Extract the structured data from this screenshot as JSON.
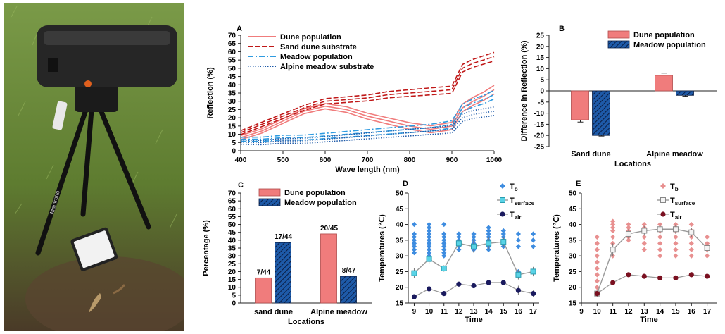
{
  "colors": {
    "dune": "#f07c7c",
    "dune_dark": "#c01818",
    "meadow": "#1e5aa8",
    "meadow_light": "#2f9be0",
    "diamond_blue": "#3d8ce0",
    "cyan": "#59d3e6",
    "navy": "#1a1a5e",
    "pink": "#e89090",
    "maroon": "#7a1020",
    "grass": "#6a8a38",
    "soil": "#5a4530"
  },
  "photo": {
    "device_label": "Manfrotto",
    "caption": "Spectrometer on tripod with white reference plate and lizard"
  },
  "chart_data": [
    {
      "id": "A",
      "type": "line",
      "title": "",
      "xlabel": "Wave length (nm)",
      "ylabel": "Reflection (%)",
      "xlim": [
        400,
        1000
      ],
      "ylim": [
        0,
        70
      ],
      "xticks": [
        400,
        500,
        600,
        700,
        800,
        900,
        1000
      ],
      "yticks": [
        0,
        5,
        10,
        15,
        20,
        25,
        30,
        35,
        40,
        45,
        50,
        55,
        60,
        65,
        70
      ],
      "series": [
        {
          "name": "Dune population",
          "style": "solid",
          "color": "#f07c7c",
          "x": [
            400,
            450,
            500,
            550,
            600,
            650,
            700,
            750,
            800,
            850,
            900,
            925,
            950,
            975,
            1000
          ],
          "values": [
            8,
            12,
            18,
            24,
            27,
            25,
            21,
            18,
            15,
            13,
            15,
            26,
            30,
            33,
            37
          ]
        },
        {
          "name": "Sand dune substrate",
          "style": "dashed",
          "color": "#c01818",
          "x": [
            400,
            450,
            500,
            550,
            600,
            650,
            700,
            750,
            800,
            850,
            900,
            925,
            950,
            975,
            1000
          ],
          "values": [
            11,
            16,
            21,
            26,
            30,
            31,
            32,
            34,
            35,
            36,
            37,
            50,
            53,
            55,
            57
          ]
        },
        {
          "name": "Meadow population",
          "style": "dashdot",
          "color": "#2f9be0",
          "x": [
            400,
            450,
            500,
            550,
            600,
            650,
            700,
            750,
            800,
            850,
            900,
            925,
            950,
            975,
            1000
          ],
          "values": [
            7,
            7,
            8,
            8,
            9,
            10,
            11,
            12,
            13,
            14,
            16,
            26,
            29,
            31,
            34
          ]
        },
        {
          "name": "Alpine meadow substrate",
          "style": "dotted",
          "color": "#1e5aa8",
          "x": [
            400,
            450,
            500,
            550,
            600,
            650,
            700,
            750,
            800,
            850,
            900,
            925,
            950,
            975,
            1000
          ],
          "values": [
            5,
            5,
            6,
            6,
            7,
            8,
            9,
            10,
            11,
            12,
            13,
            20,
            22,
            23,
            24
          ]
        }
      ]
    },
    {
      "id": "B",
      "type": "bar",
      "xlabel": "Locations",
      "ylabel": "Difference in Reflection (%)",
      "ylim": [
        -25,
        25
      ],
      "yticks": [
        -25,
        -20,
        -15,
        -10,
        -5,
        0,
        5,
        10,
        15,
        20,
        25
      ],
      "categories": [
        "Sand dune",
        "Alpine meadow"
      ],
      "series": [
        {
          "name": "Dune population",
          "color": "#f07c7c",
          "hatch": false,
          "values": [
            -13,
            7
          ],
          "errors": [
            1,
            1
          ]
        },
        {
          "name": "Meadow population",
          "color": "#1e5aa8",
          "hatch": true,
          "values": [
            -20,
            -2
          ],
          "errors": [
            0.3,
            0.4
          ]
        }
      ]
    },
    {
      "id": "C",
      "type": "bar",
      "xlabel": "Locations",
      "ylabel": "Percentage (%)",
      "ylim": [
        0,
        70
      ],
      "yticks": [
        0,
        5,
        10,
        15,
        20,
        25,
        30,
        35,
        40,
        45,
        50,
        55,
        60,
        65,
        70
      ],
      "categories": [
        "sand dune",
        "Alpine meadow"
      ],
      "series": [
        {
          "name": "Dune population",
          "color": "#f07c7c",
          "hatch": false,
          "values": [
            16,
            44
          ],
          "labels": [
            "7/44",
            "20/45"
          ]
        },
        {
          "name": "Meadow population",
          "color": "#1e5aa8",
          "hatch": true,
          "values": [
            38.5,
            17
          ],
          "labels": [
            "17/44",
            "8/47"
          ]
        }
      ]
    },
    {
      "id": "D",
      "type": "scatter",
      "xlabel": "Time",
      "ylabel": "Temperatures (℃)",
      "xlim": [
        8.6,
        17.4
      ],
      "ylim": [
        15,
        50
      ],
      "xticks": [
        9,
        10,
        11,
        12,
        13,
        14,
        15,
        16,
        17
      ],
      "yticks": [
        15,
        20,
        25,
        30,
        35,
        40,
        45,
        50
      ],
      "legend": [
        {
          "main": "T",
          "sub": "b"
        },
        {
          "main": "T",
          "sub": "surface"
        },
        {
          "main": "T",
          "sub": "air"
        }
      ],
      "x": [
        9,
        10,
        11,
        12,
        13,
        14,
        15,
        16,
        17
      ],
      "tb_points": [
        [
          31,
          32,
          33,
          34,
          35,
          36,
          37,
          40
        ],
        [
          30,
          31,
          32,
          33,
          34,
          35,
          36,
          37,
          38,
          39,
          40
        ],
        [
          30,
          31,
          32,
          33,
          34,
          35,
          36,
          37,
          40
        ],
        [
          32,
          33,
          34,
          35,
          36,
          37
        ],
        [
          32,
          33,
          34,
          35,
          36,
          37
        ],
        [
          32,
          33,
          34,
          35,
          36,
          37,
          38,
          39
        ],
        [
          33,
          34,
          35,
          36,
          37,
          38
        ],
        [
          25,
          33,
          35,
          37
        ],
        [
          33,
          35,
          37
        ]
      ],
      "t_surface": [
        24.5,
        29,
        26,
        34,
        33,
        34,
        34.5,
        24,
        25
      ],
      "t_surface_err": [
        1.5,
        1.5,
        1,
        1,
        2,
        2,
        1.5,
        1.5,
        1.5
      ],
      "t_air": [
        17,
        19.5,
        18,
        21,
        20.5,
        21.5,
        21.5,
        19,
        18
      ],
      "t_air_err": [
        0.8,
        0.6,
        0.5,
        0.7,
        0.6,
        0.5,
        0.5,
        1.5,
        1
      ]
    },
    {
      "id": "E",
      "type": "scatter",
      "xlabel": "Time",
      "ylabel": "Temperatures (℃)",
      "xlim": [
        9,
        17.6
      ],
      "ylim": [
        15,
        50
      ],
      "xticks": [
        9,
        10,
        11,
        12,
        13,
        14,
        15,
        16,
        17
      ],
      "yticks": [
        15,
        20,
        25,
        30,
        35,
        40,
        45,
        50
      ],
      "legend": [
        {
          "main": "T",
          "sub": "b"
        },
        {
          "main": "T",
          "sub": "surface"
        },
        {
          "main": "T",
          "sub": "air"
        }
      ],
      "x": [
        10,
        11,
        12,
        13,
        14,
        15,
        16,
        17
      ],
      "tb_points": [
        [
          18,
          20,
          22,
          24,
          26,
          28,
          30,
          32,
          34,
          36
        ],
        [
          30,
          32,
          34,
          36,
          38,
          39,
          40,
          41
        ],
        [
          35,
          36,
          37,
          38,
          39,
          40
        ],
        [
          32,
          34,
          36,
          38,
          39,
          40
        ],
        [
          30,
          32,
          34,
          36,
          38,
          40
        ],
        [
          30,
          32,
          34,
          36,
          38,
          39,
          40
        ],
        [
          30,
          32,
          34,
          36,
          38,
          40
        ],
        [
          30,
          32,
          34,
          36
        ]
      ],
      "t_surface": [
        18,
        32,
        37,
        38,
        38.5,
        38.5,
        37.5,
        32.5
      ],
      "t_surface_err": [
        1,
        2,
        1.5,
        1.5,
        2,
        1.5,
        1.5,
        2
      ],
      "t_air": [
        18,
        21.5,
        24,
        23.5,
        23,
        23,
        24,
        23.5
      ],
      "t_air_err": [
        0.5,
        0.6,
        0.5,
        0.4,
        0.4,
        0.4,
        0.8,
        0.5
      ]
    }
  ]
}
